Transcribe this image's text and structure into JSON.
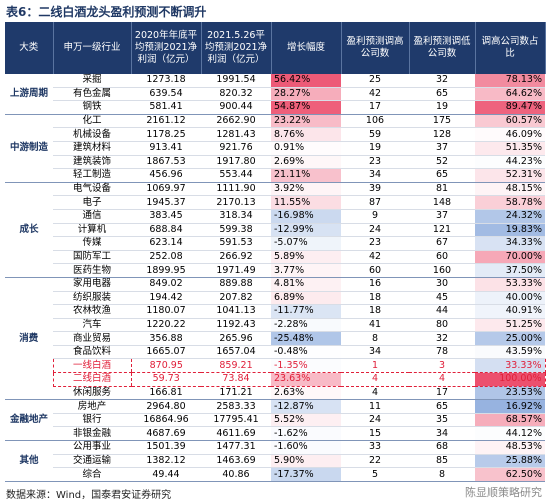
{
  "header": {
    "title": "表6：二线白酒龙头盈利预测不断调升"
  },
  "table": {
    "columns": [
      "大类",
      "申万一级行业",
      "2020年年底平均预测2021净利润（亿元）",
      "2021.5.26平均预测2021净利润（亿元）",
      "增长幅度",
      "盈利预测调高公司数",
      "盈利预测调低公司数",
      "调高公司数占比"
    ],
    "groups": [
      {
        "name": "上游周期",
        "rows": [
          {
            "cells": [
              "采掘",
              "1273.18",
              "1991.54",
              "56.42%",
              "25",
              "32",
              "78.13%"
            ]
          },
          {
            "cells": [
              "有色金属",
              "639.54",
              "820.32",
              "28.27%",
              "42",
              "65",
              "64.62%"
            ]
          },
          {
            "cells": [
              "钢铁",
              "581.41",
              "900.44",
              "54.87%",
              "17",
              "19",
              "89.47%"
            ]
          }
        ]
      },
      {
        "name": "中游制造",
        "rows": [
          {
            "cells": [
              "化工",
              "2161.12",
              "2662.90",
              "23.22%",
              "106",
              "175",
              "60.57%"
            ]
          },
          {
            "cells": [
              "机械设备",
              "1178.25",
              "1281.43",
              "8.76%",
              "59",
              "128",
              "46.09%"
            ]
          },
          {
            "cells": [
              "建筑材料",
              "913.41",
              "921.76",
              "0.91%",
              "19",
              "37",
              "51.35%"
            ]
          },
          {
            "cells": [
              "建筑装饰",
              "1867.53",
              "1917.80",
              "2.69%",
              "23",
              "52",
              "44.23%"
            ]
          },
          {
            "cells": [
              "轻工制造",
              "456.96",
              "553.44",
              "21.11%",
              "34",
              "65",
              "52.31%"
            ]
          }
        ]
      },
      {
        "name": "成长",
        "rows": [
          {
            "cells": [
              "电气设备",
              "1069.97",
              "1111.90",
              "3.92%",
              "39",
              "81",
              "48.15%"
            ]
          },
          {
            "cells": [
              "电子",
              "1945.37",
              "2170.13",
              "11.55%",
              "87",
              "148",
              "58.78%"
            ]
          },
          {
            "cells": [
              "通信",
              "383.45",
              "318.34",
              "-16.98%",
              "9",
              "37",
              "24.32%"
            ]
          },
          {
            "cells": [
              "计算机",
              "688.84",
              "599.38",
              "-12.99%",
              "24",
              "121",
              "19.83%"
            ]
          },
          {
            "cells": [
              "传媒",
              "623.14",
              "591.53",
              "-5.07%",
              "23",
              "67",
              "34.33%"
            ]
          },
          {
            "cells": [
              "国防军工",
              "252.08",
              "266.92",
              "5.89%",
              "42",
              "60",
              "70.00%"
            ]
          },
          {
            "cells": [
              "医药生物",
              "1899.95",
              "1971.49",
              "3.77%",
              "60",
              "160",
              "37.50%"
            ]
          }
        ]
      },
      {
        "name": "消费",
        "rows": [
          {
            "cells": [
              "家用电器",
              "849.02",
              "889.88",
              "4.81%",
              "16",
              "30",
              "53.33%"
            ]
          },
          {
            "cells": [
              "纺织服装",
              "194.42",
              "207.82",
              "6.89%",
              "18",
              "45",
              "40.00%"
            ]
          },
          {
            "cells": [
              "农林牧渔",
              "1180.07",
              "1041.13",
              "-11.77%",
              "18",
              "44",
              "40.91%"
            ]
          },
          {
            "cells": [
              "汽车",
              "1220.22",
              "1192.43",
              "-2.28%",
              "41",
              "80",
              "51.25%"
            ]
          },
          {
            "cells": [
              "商业贸易",
              "356.88",
              "265.96",
              "-25.48%",
              "8",
              "32",
              "25.00%"
            ]
          },
          {
            "cells": [
              "食品饮料",
              "1665.07",
              "1657.04",
              "-0.48%",
              "34",
              "78",
              "43.59%"
            ]
          },
          {
            "cells": [
              "一线白酒",
              "870.95",
              "859.21",
              "-1.35%",
              "1",
              "3",
              "33.33%"
            ],
            "highlight": true
          },
          {
            "cells": [
              "二线白酒",
              "59.73",
              "73.84",
              "23.63%",
              "4",
              "4",
              "100.00%"
            ],
            "highlight": true
          },
          {
            "cells": [
              "休闲服务",
              "166.81",
              "171.21",
              "2.63%",
              "4",
              "17",
              "23.53%"
            ]
          }
        ]
      },
      {
        "name": "金融地产",
        "rows": [
          {
            "cells": [
              "房地产",
              "2964.80",
              "2583.33",
              "-12.87%",
              "11",
              "65",
              "16.92%"
            ]
          },
          {
            "cells": [
              "银行",
              "16864.96",
              "17795.41",
              "5.52%",
              "24",
              "35",
              "68.57%"
            ]
          },
          {
            "cells": [
              "非银金融",
              "4687.69",
              "4611.69",
              "-1.62%",
              "15",
              "34",
              "44.12%"
            ]
          }
        ]
      },
      {
        "name": "其他",
        "rows": [
          {
            "cells": [
              "公用事业",
              "1501.39",
              "1477.31",
              "-1.60%",
              "33",
              "68",
              "48.53%"
            ]
          },
          {
            "cells": [
              "交通运输",
              "1382.12",
              "1463.69",
              "5.90%",
              "22",
              "85",
              "25.88%"
            ]
          },
          {
            "cells": [
              "综合",
              "49.44",
              "40.86",
              "-17.37%",
              "5",
              "8",
              "62.50%"
            ]
          }
        ]
      }
    ]
  },
  "footer": {
    "source": "数据来源：Wind，国泰君安证券研究",
    "watermark": "陈显顺策略研究"
  }
}
